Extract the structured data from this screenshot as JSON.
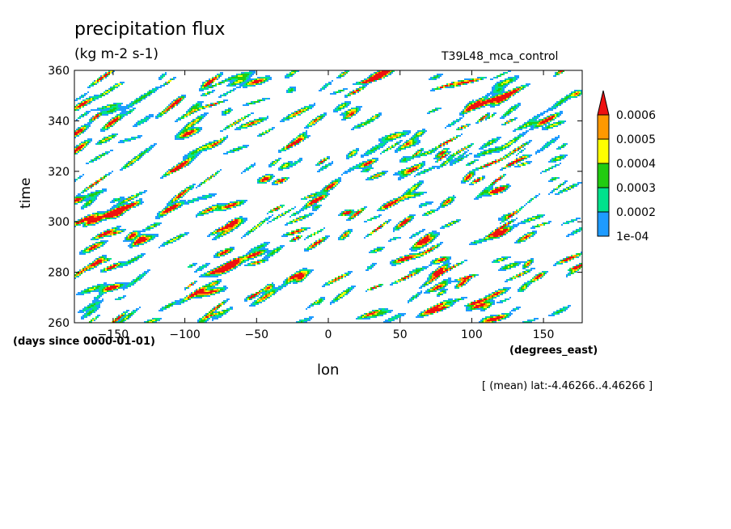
{
  "title": "precipitation flux",
  "units": "(kg m-2 s-1)",
  "experiment": "T39L48_mca_control",
  "footnote": "[ (mean) lat:-4.46266..4.46266 ]",
  "chart_data": {
    "type": "heatmap",
    "xlabel": "lon",
    "xunits": "(degrees_east)",
    "ylabel": "time",
    "yunits": "(days since 0000-01-01)",
    "xlim": [
      -177,
      177
    ],
    "ylim": [
      260,
      360
    ],
    "xticks": [
      -150,
      -100,
      -50,
      0,
      50,
      100,
      150
    ],
    "yticks": [
      260,
      280,
      300,
      320,
      340,
      360
    ],
    "contour_levels": [
      0.0001,
      0.0002,
      0.0003,
      0.0004,
      0.0005,
      0.0006
    ],
    "colorbar_labels": [
      "0.0006",
      "0.0005",
      "0.0004",
      "0.0003",
      "0.0002",
      "1e-04"
    ],
    "colors": [
      "#1e9bff",
      "#00e28c",
      "#22cc11",
      "#ffff00",
      "#ff9900",
      "#ee1111"
    ],
    "colorbar_extend": "max",
    "colorbar_position": "right"
  }
}
